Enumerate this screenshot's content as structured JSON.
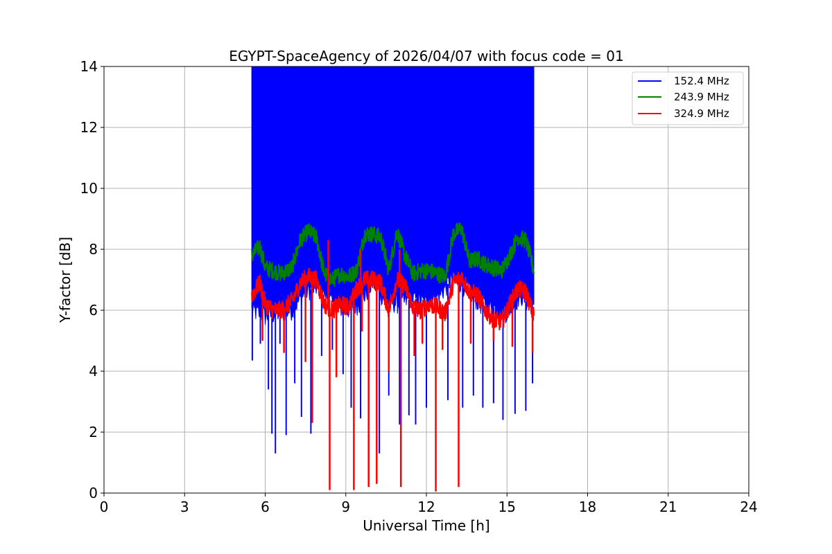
{
  "chart_data": {
    "type": "line",
    "title": "EGYPT-SpaceAgency of 2026/04/07 with focus code = 01",
    "xlabel": "Universal Time [h]",
    "ylabel": "Y-factor [dB]",
    "xlim": [
      0,
      24
    ],
    "ylim": [
      0,
      14
    ],
    "xticks": [
      0,
      3,
      6,
      9,
      12,
      15,
      18,
      21,
      24
    ],
    "yticks": [
      0,
      2,
      4,
      6,
      8,
      10,
      12,
      14
    ],
    "grid": true,
    "legend_position": "top-right",
    "series": [
      {
        "name": "152.4 MHz",
        "color": "#0000ff",
        "envelope": {
          "x": [
            5.5,
            6.0,
            6.5,
            7.0,
            7.5,
            8.0,
            8.5,
            9.0,
            9.5,
            10.0,
            10.5,
            11.0,
            11.5,
            12.0,
            12.5,
            13.0,
            13.5,
            14.0,
            14.5,
            15.0,
            15.5,
            16.0
          ],
          "upper": [
            14,
            14,
            14,
            14,
            14,
            14,
            14,
            14,
            14,
            14,
            14,
            14,
            14,
            14,
            14,
            14,
            14,
            14,
            14,
            14,
            14,
            14
          ],
          "lower": [
            6.0,
            5.8,
            5.9,
            6.0,
            6.6,
            6.8,
            6.2,
            6.0,
            6.2,
            6.9,
            6.3,
            6.2,
            6.4,
            6.2,
            6.5,
            7.1,
            6.7,
            6.2,
            6.1,
            5.9,
            6.5,
            6.0
          ]
        },
        "dips": [
          [
            5.52,
            4.35
          ],
          [
            5.82,
            4.9
          ],
          [
            6.12,
            3.4
          ],
          [
            6.25,
            1.95
          ],
          [
            6.38,
            1.3
          ],
          [
            6.55,
            4.9
          ],
          [
            6.78,
            1.9
          ],
          [
            7.1,
            3.6
          ],
          [
            7.35,
            2.5
          ],
          [
            7.7,
            1.95
          ],
          [
            8.1,
            4.5
          ],
          [
            8.5,
            4.7
          ],
          [
            8.9,
            3.9
          ],
          [
            9.2,
            2.8
          ],
          [
            9.55,
            2.45
          ],
          [
            9.85,
            3.7
          ],
          [
            10.25,
            1.3
          ],
          [
            10.6,
            3.2
          ],
          [
            11.0,
            2.25
          ],
          [
            11.35,
            2.55
          ],
          [
            11.6,
            2.25
          ],
          [
            12.0,
            2.8
          ],
          [
            12.35,
            4.2
          ],
          [
            12.8,
            3.05
          ],
          [
            13.35,
            2.8
          ],
          [
            13.75,
            3.2
          ],
          [
            14.1,
            2.8
          ],
          [
            14.5,
            2.95
          ],
          [
            14.85,
            2.4
          ],
          [
            15.3,
            2.6
          ],
          [
            15.7,
            2.7
          ],
          [
            15.95,
            3.6
          ]
        ]
      },
      {
        "name": "243.9 MHz",
        "color": "#008000",
        "x": [
          5.5,
          5.8,
          6.0,
          6.3,
          6.6,
          7.0,
          7.3,
          7.6,
          7.9,
          8.2,
          8.5,
          8.8,
          9.1,
          9.4,
          9.7,
          10.0,
          10.3,
          10.6,
          10.9,
          11.2,
          11.5,
          11.8,
          12.1,
          12.4,
          12.7,
          13.0,
          13.3,
          13.6,
          13.9,
          14.2,
          14.5,
          14.8,
          15.1,
          15.4,
          15.7,
          16.0
        ],
        "values": [
          7.8,
          8.1,
          7.4,
          7.3,
          7.2,
          7.4,
          8.3,
          8.6,
          8.4,
          7.2,
          7.0,
          7.2,
          7.1,
          7.3,
          8.5,
          8.5,
          8.4,
          7.3,
          8.6,
          7.8,
          7.2,
          7.3,
          7.3,
          7.2,
          7.1,
          8.5,
          8.7,
          7.6,
          7.7,
          7.5,
          7.4,
          7.3,
          7.8,
          8.4,
          8.3,
          7.3
        ]
      },
      {
        "name": "324.9 MHz",
        "color": "#ff0000",
        "x": [
          5.5,
          5.8,
          6.0,
          6.3,
          6.6,
          7.0,
          7.3,
          7.6,
          7.9,
          8.2,
          8.5,
          8.8,
          9.1,
          9.4,
          9.7,
          10.0,
          10.3,
          10.6,
          10.9,
          11.2,
          11.5,
          11.8,
          12.1,
          12.4,
          12.7,
          13.0,
          13.3,
          13.6,
          13.9,
          14.2,
          14.5,
          14.8,
          15.1,
          15.4,
          15.7,
          16.0
        ],
        "values": [
          6.5,
          6.9,
          6.2,
          6.0,
          6.0,
          6.3,
          6.9,
          7.1,
          7.0,
          6.2,
          6.0,
          6.2,
          6.1,
          6.7,
          7.0,
          7.0,
          6.9,
          6.0,
          7.0,
          6.8,
          6.1,
          6.0,
          6.2,
          6.1,
          5.9,
          6.9,
          7.1,
          6.6,
          6.5,
          6.0,
          5.7,
          5.6,
          6.2,
          6.7,
          6.6,
          5.8
        ],
        "dips": [
          [
            5.9,
            5.0
          ],
          [
            6.7,
            4.6
          ],
          [
            7.5,
            4.3
          ],
          [
            7.75,
            2.3
          ],
          [
            8.4,
            0.1
          ],
          [
            8.65,
            3.8
          ],
          [
            9.3,
            0.1
          ],
          [
            9.6,
            5.3
          ],
          [
            9.85,
            0.2
          ],
          [
            10.15,
            0.3
          ],
          [
            10.6,
            4.0
          ],
          [
            11.05,
            0.2
          ],
          [
            11.55,
            4.5
          ],
          [
            11.85,
            4.9
          ],
          [
            12.35,
            0.05
          ],
          [
            12.6,
            4.7
          ],
          [
            13.2,
            0.2
          ],
          [
            13.65,
            4.9
          ],
          [
            14.5,
            5.0
          ],
          [
            15.2,
            4.8
          ],
          [
            15.95,
            4.6
          ]
        ],
        "spikes": [
          [
            8.35,
            8.3
          ],
          [
            9.55,
            8.0
          ],
          [
            11.0,
            8.0
          ]
        ]
      }
    ]
  }
}
